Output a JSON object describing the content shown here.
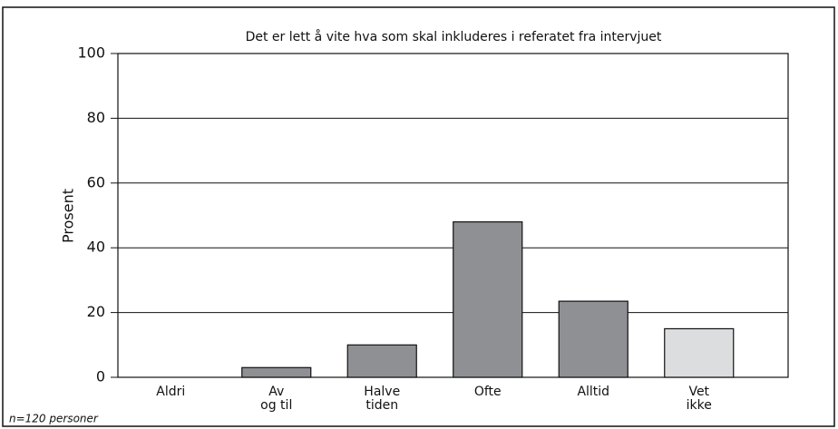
{
  "chart_data": {
    "type": "bar",
    "title": "Det er lett å vite hva som skal inkluderes i referatet fra intervjuet",
    "y_label": "Prosent",
    "note": "n=120 personer",
    "categories": [
      [
        "Aldri"
      ],
      [
        "Av",
        "og til"
      ],
      [
        "Halve",
        "tiden"
      ],
      [
        "Ofte"
      ],
      [
        "Alltid"
      ],
      [
        "Vet",
        "ikke"
      ]
    ],
    "values": [
      0,
      3,
      10,
      48,
      23.5,
      15
    ],
    "colors": [
      "#8f9094",
      "#8f9094",
      "#8f9094",
      "#8f9094",
      "#8f9094",
      "#dcdddf"
    ],
    "ylim": [
      0,
      100
    ],
    "yticks": [
      0,
      20,
      40,
      60,
      80,
      100
    ],
    "grid": true
  }
}
